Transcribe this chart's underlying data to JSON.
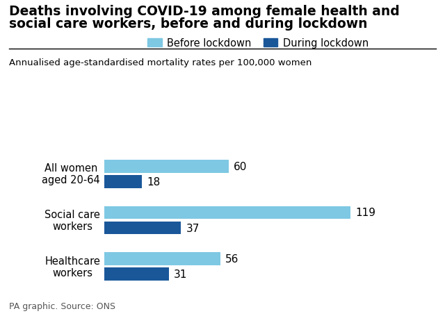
{
  "title_line1": "Deaths involving COVID-19 among female health and",
  "title_line2": "social care workers, before and during lockdown",
  "subtitle": "Annualised age-standardised mortality rates per 100,000 women",
  "footer": "PA graphic. Source: ONS",
  "categories": [
    "All women\naged 20-64",
    "Social care\nworkers",
    "Healthcare\nworkers"
  ],
  "before_values": [
    60,
    119,
    56
  ],
  "during_values": [
    18,
    37,
    31
  ],
  "color_before": "#7EC8E3",
  "color_during": "#1A5799",
  "legend_before": "Before lockdown",
  "legend_during": "During lockdown",
  "bar_height": 0.28,
  "xlim": [
    0,
    155
  ],
  "background_color": "#ffffff"
}
